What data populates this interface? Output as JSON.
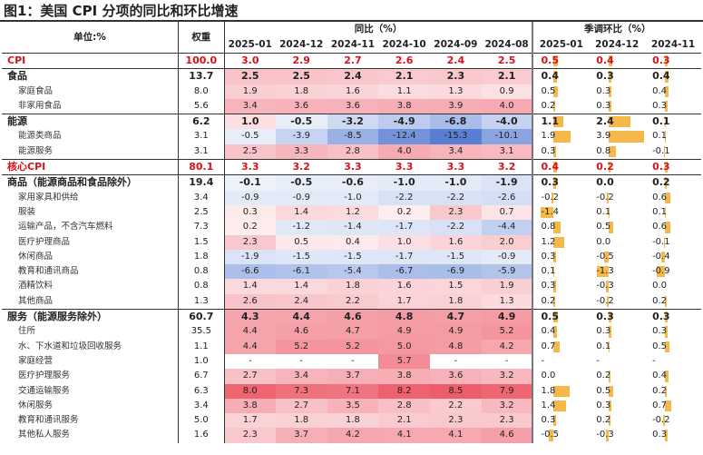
{
  "title": "图1：美国 CPI 分项的同比和环比增速",
  "table": {
    "header": {
      "unit": "单位:%",
      "weight": "权重",
      "yoy": "同比（%）",
      "mom": "季调环比（%）",
      "yoy_dates": [
        "2025-01",
        "2024-12",
        "2024-11",
        "2024-10",
        "2024-09",
        "2024-08"
      ],
      "mom_dates": [
        "2025-01",
        "2024-12",
        "2024-11"
      ]
    },
    "rows": [
      {
        "name": "CPI",
        "style": "total",
        "weight": "100.0",
        "yoy": [
          "3.0",
          "2.9",
          "2.7",
          "2.6",
          "2.4",
          "2.5"
        ],
        "mom": [
          "0.5",
          "0.4",
          "0.3"
        ]
      },
      {
        "name": "食品",
        "style": "group",
        "weight": "13.7",
        "yoy": [
          "2.5",
          "2.5",
          "2.4",
          "2.1",
          "2.3",
          "2.1"
        ],
        "mom": [
          "0.4",
          "0.3",
          "0.4"
        ]
      },
      {
        "name": "家庭食品",
        "style": "item",
        "weight": "8.0",
        "yoy": [
          "1.9",
          "1.8",
          "1.6",
          "1.1",
          "1.3",
          "0.9"
        ],
        "mom": [
          "0.5",
          "0.3",
          "0.4"
        ]
      },
      {
        "name": "非家用食品",
        "style": "item",
        "weight": "5.6",
        "yoy": [
          "3.4",
          "3.6",
          "3.6",
          "3.8",
          "3.9",
          "4.0"
        ],
        "mom": [
          "0.2",
          "0.3",
          "0.3"
        ]
      },
      {
        "name": "能源",
        "style": "group",
        "weight": "6.2",
        "yoy": [
          "1.0",
          "-0.5",
          "-3.2",
          "-4.9",
          "-6.8",
          "-4.0"
        ],
        "mom": [
          "1.1",
          "2.4",
          "0.1"
        ]
      },
      {
        "name": "能源类商品",
        "style": "item",
        "weight": "3.1",
        "yoy": [
          "-0.5",
          "-3.9",
          "-8.5",
          "-12.4",
          "-15.3",
          "-10.1"
        ],
        "mom": [
          "1.9",
          "3.9",
          "0.1"
        ]
      },
      {
        "name": "能源服务",
        "style": "item",
        "weight": "3.1",
        "yoy": [
          "2.5",
          "3.3",
          "2.8",
          "4.0",
          "3.4",
          "3.1"
        ],
        "mom": [
          "0.3",
          "0.8",
          "-0.1"
        ]
      },
      {
        "name": "核心CPI",
        "style": "total",
        "weight": "80.1",
        "yoy": [
          "3.3",
          "3.2",
          "3.3",
          "3.3",
          "3.3",
          "3.2"
        ],
        "mom": [
          "0.4",
          "0.2",
          "0.3"
        ]
      },
      {
        "name": "商品（能源商品和食品除外）",
        "style": "group",
        "weight": "19.4",
        "yoy": [
          "-0.1",
          "-0.5",
          "-0.6",
          "-1.0",
          "-1.0",
          "-1.9"
        ],
        "mom": [
          "0.3",
          "0.0",
          "0.2"
        ]
      },
      {
        "name": "家用家具和供给",
        "style": "item",
        "weight": "3.4",
        "yoy": [
          "-0.9",
          "-0.9",
          "-1.0",
          "-2.2",
          "-2.2",
          "-2.6"
        ],
        "mom": [
          "-0.2",
          "-0.2",
          "0.6"
        ]
      },
      {
        "name": "服装",
        "style": "item",
        "weight": "2.5",
        "yoy": [
          "0.3",
          "1.4",
          "1.2",
          "0.2",
          "2.3",
          "0.7"
        ],
        "mom": [
          "-1.4",
          "0.1",
          "0.1"
        ]
      },
      {
        "name": "运输产品，不含汽车燃料",
        "style": "item",
        "weight": "7.3",
        "yoy": [
          "0.2",
          "-1.2",
          "-1.4",
          "-1.7",
          "-2.2",
          "-4.4"
        ],
        "mom": [
          "0.8",
          "0.5",
          "0.6"
        ]
      },
      {
        "name": "医疗护理商品",
        "style": "item",
        "weight": "1.5",
        "yoy": [
          "2.3",
          "0.5",
          "0.4",
          "1.0",
          "1.6",
          "2.0"
        ],
        "mom": [
          "1.2",
          "0.0",
          "-0.1"
        ]
      },
      {
        "name": "休闲商品",
        "style": "item",
        "weight": "1.8",
        "yoy": [
          "-1.9",
          "-1.5",
          "-1.5",
          "-1.7",
          "-1.5",
          "-0.9"
        ],
        "mom": [
          "0.3",
          "-0.5",
          "-0.4"
        ]
      },
      {
        "name": "教育和通讯商品",
        "style": "item",
        "weight": "0.8",
        "yoy": [
          "-6.6",
          "-6.1",
          "-5.4",
          "-6.7",
          "-6.9",
          "-5.9"
        ],
        "mom": [
          "0.1",
          "-1.3",
          "-0.9"
        ]
      },
      {
        "name": "酒精饮料",
        "style": "item",
        "weight": "0.8",
        "yoy": [
          "1.4",
          "1.4",
          "1.8",
          "1.6",
          "1.5",
          "1.9"
        ],
        "mom": [
          "0.3",
          "-0.3",
          "0.0"
        ]
      },
      {
        "name": "其他商品",
        "style": "item",
        "weight": "1.3",
        "yoy": [
          "2.6",
          "2.4",
          "2.2",
          "1.7",
          "1.8",
          "1.3"
        ],
        "mom": [
          "0.2",
          "-0.2",
          "0.2"
        ]
      },
      {
        "name": "服务（能源服务除外）",
        "style": "group",
        "weight": "60.7",
        "yoy": [
          "4.3",
          "4.4",
          "4.6",
          "4.8",
          "4.7",
          "4.9"
        ],
        "mom": [
          "0.5",
          "0.3",
          "0.3"
        ]
      },
      {
        "name": "住所",
        "style": "item",
        "weight": "35.5",
        "yoy": [
          "4.4",
          "4.6",
          "4.7",
          "4.9",
          "4.9",
          "5.2"
        ],
        "mom": [
          "0.4",
          "0.3",
          "0.3"
        ]
      },
      {
        "name": "水、下水道和垃圾回收服务",
        "style": "item",
        "weight": "1.1",
        "yoy": [
          "4.4",
          "5.2",
          "5.2",
          "5.0",
          "4.8",
          "4.2"
        ],
        "mom": [
          "0.7",
          "0.1",
          "0.5"
        ]
      },
      {
        "name": "家庭经营",
        "style": "item",
        "weight": "1.0",
        "yoy": [
          "-",
          "-",
          "-",
          "5.7",
          "-",
          "-"
        ],
        "mom": [
          "-",
          "-",
          "-"
        ]
      },
      {
        "name": "医疗护理服务",
        "style": "item",
        "weight": "6.7",
        "yoy": [
          "2.7",
          "3.4",
          "3.7",
          "3.8",
          "3.6",
          "3.2"
        ],
        "mom": [
          "0.0",
          "0.2",
          "0.4"
        ]
      },
      {
        "name": "交通运输服务",
        "style": "item",
        "weight": "6.3",
        "yoy": [
          "8.0",
          "7.3",
          "7.1",
          "8.2",
          "8.5",
          "7.9"
        ],
        "mom": [
          "1.8",
          "0.5",
          "0.2"
        ]
      },
      {
        "name": "休闲服务",
        "style": "item",
        "weight": "3.4",
        "yoy": [
          "3.8",
          "2.7",
          "3.5",
          "2.8",
          "2.2",
          "3.2"
        ],
        "mom": [
          "1.4",
          "0.3",
          "0.7"
        ]
      },
      {
        "name": "教育和通讯服务",
        "style": "item",
        "weight": "5.0",
        "yoy": [
          "1.7",
          "1.8",
          "1.8",
          "2.1",
          "2.3",
          "2.3"
        ],
        "mom": [
          "0.3",
          "0.2",
          "-0.2"
        ]
      },
      {
        "name": "其他私人服务",
        "style": "item",
        "weight": "1.6",
        "yoy": [
          "2.3",
          "3.7",
          "4.2",
          "4.1",
          "4.1",
          "4.6"
        ],
        "mom": [
          "-0.5",
          "-0.3",
          "0.3"
        ]
      }
    ]
  }
}
